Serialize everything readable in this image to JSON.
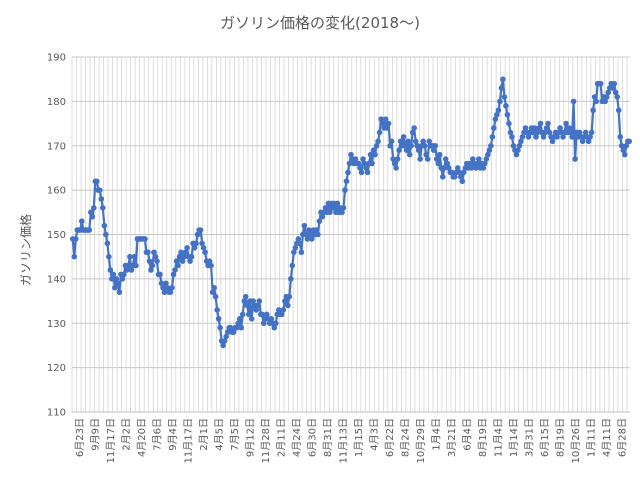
{
  "chart_data": {
    "type": "line",
    "title": "ガソリン価格の変化(2018～)",
    "xlabel": "",
    "ylabel": "ガソリン価格",
    "ylim": [
      110,
      190
    ],
    "y_ticks": [
      110,
      120,
      130,
      140,
      150,
      160,
      170,
      180,
      190
    ],
    "x_tick_labels": [
      "6月23日",
      "9月9日",
      "11月17日",
      "2月2日",
      "4月20日",
      "7月6日",
      "9月4日",
      "11月17日",
      "2月1日",
      "4月5日",
      "7月5日",
      "9月12日",
      "11月28日",
      "2月11日",
      "4月24日",
      "6月30日",
      "8月31日",
      "11月13日",
      "1月15日",
      "4月3日",
      "6月22日",
      "8月24日",
      "10月29日",
      "1月4日",
      "3月21日",
      "6月4日",
      "8月19日",
      "11月4日",
      "1月14日",
      "3月31日",
      "6月15日",
      "8月19日",
      "10月26日",
      "1月11日",
      "4月11日",
      "6月28日"
    ],
    "grid": true,
    "legend": "none",
    "color": "#4472C4",
    "series": [
      {
        "values": [
          149,
          145,
          149,
          151,
          151,
          151,
          153,
          151,
          151,
          151,
          151,
          151,
          155,
          154,
          156,
          162,
          162,
          160,
          160,
          158,
          156,
          152,
          150,
          148,
          145,
          142,
          140,
          141,
          138,
          140,
          139,
          137,
          141,
          140,
          141,
          143,
          142,
          143,
          145,
          142,
          143,
          145,
          143,
          149,
          149,
          149,
          149,
          149,
          149,
          146,
          146,
          144,
          142,
          143,
          146,
          145,
          144,
          141,
          141,
          139,
          138,
          137,
          139,
          138,
          137,
          137,
          138,
          141,
          142,
          144,
          143,
          145,
          146,
          144,
          145,
          146,
          147,
          145,
          144,
          145,
          148,
          147,
          148,
          150,
          151,
          151,
          148,
          147,
          146,
          144,
          143,
          144,
          143,
          137,
          138,
          136,
          133,
          131,
          129,
          126,
          125,
          126,
          127,
          128,
          129,
          129,
          128,
          128,
          129,
          129,
          130,
          131,
          129,
          132,
          135,
          136,
          134,
          132,
          135,
          131,
          135,
          134,
          133,
          134,
          135,
          132,
          132,
          130,
          131,
          132,
          131,
          130,
          131,
          130,
          129,
          130,
          132,
          133,
          132,
          132,
          133,
          135,
          136,
          134,
          136,
          140,
          143,
          146,
          147,
          148,
          149,
          148,
          146,
          150,
          152,
          150,
          149,
          151,
          150,
          149,
          151,
          150,
          151,
          150,
          153,
          155,
          154,
          155,
          156,
          155,
          157,
          155,
          157,
          156,
          157,
          155,
          157,
          155,
          156,
          155,
          156,
          160,
          162,
          164,
          166,
          168,
          167,
          166,
          167,
          166,
          166,
          165,
          164,
          167,
          166,
          165,
          164,
          166,
          168,
          166,
          169,
          168,
          170,
          171,
          173,
          176,
          175,
          174,
          176,
          174,
          175,
          170,
          171,
          167,
          166,
          165,
          167,
          169,
          171,
          170,
          172,
          170,
          169,
          171,
          168,
          170,
          173,
          174,
          171,
          170,
          169,
          167,
          170,
          171,
          170,
          168,
          167,
          171,
          170,
          170,
          169,
          170,
          167,
          166,
          168,
          165,
          163,
          165,
          167,
          166,
          165,
          164,
          164,
          163,
          163,
          164,
          165,
          164,
          163,
          162,
          164,
          165,
          166,
          165,
          166,
          165,
          167,
          166,
          165,
          166,
          167,
          165,
          166,
          165,
          166,
          167,
          168,
          169,
          170,
          172,
          174,
          176,
          177,
          178,
          180,
          183,
          185,
          181,
          179,
          177,
          175,
          173,
          172,
          170,
          169,
          168,
          169,
          170,
          171,
          172,
          173,
          174,
          173,
          172,
          173,
          174,
          173,
          174,
          172,
          173,
          174,
          175,
          173,
          172,
          173,
          174,
          175,
          173,
          172,
          171,
          172,
          173,
          172,
          173,
          174,
          173,
          172,
          173,
          175,
          173,
          174,
          173,
          172,
          180,
          167,
          173,
          172,
          173,
          172,
          171,
          172,
          173,
          172,
          171,
          172,
          173,
          178,
          181,
          180,
          184,
          184,
          184,
          180,
          181,
          180,
          181,
          182,
          183,
          184,
          183,
          184,
          182,
          181,
          178,
          172,
          170,
          169,
          168,
          170,
          171,
          171
        ]
      }
    ]
  }
}
